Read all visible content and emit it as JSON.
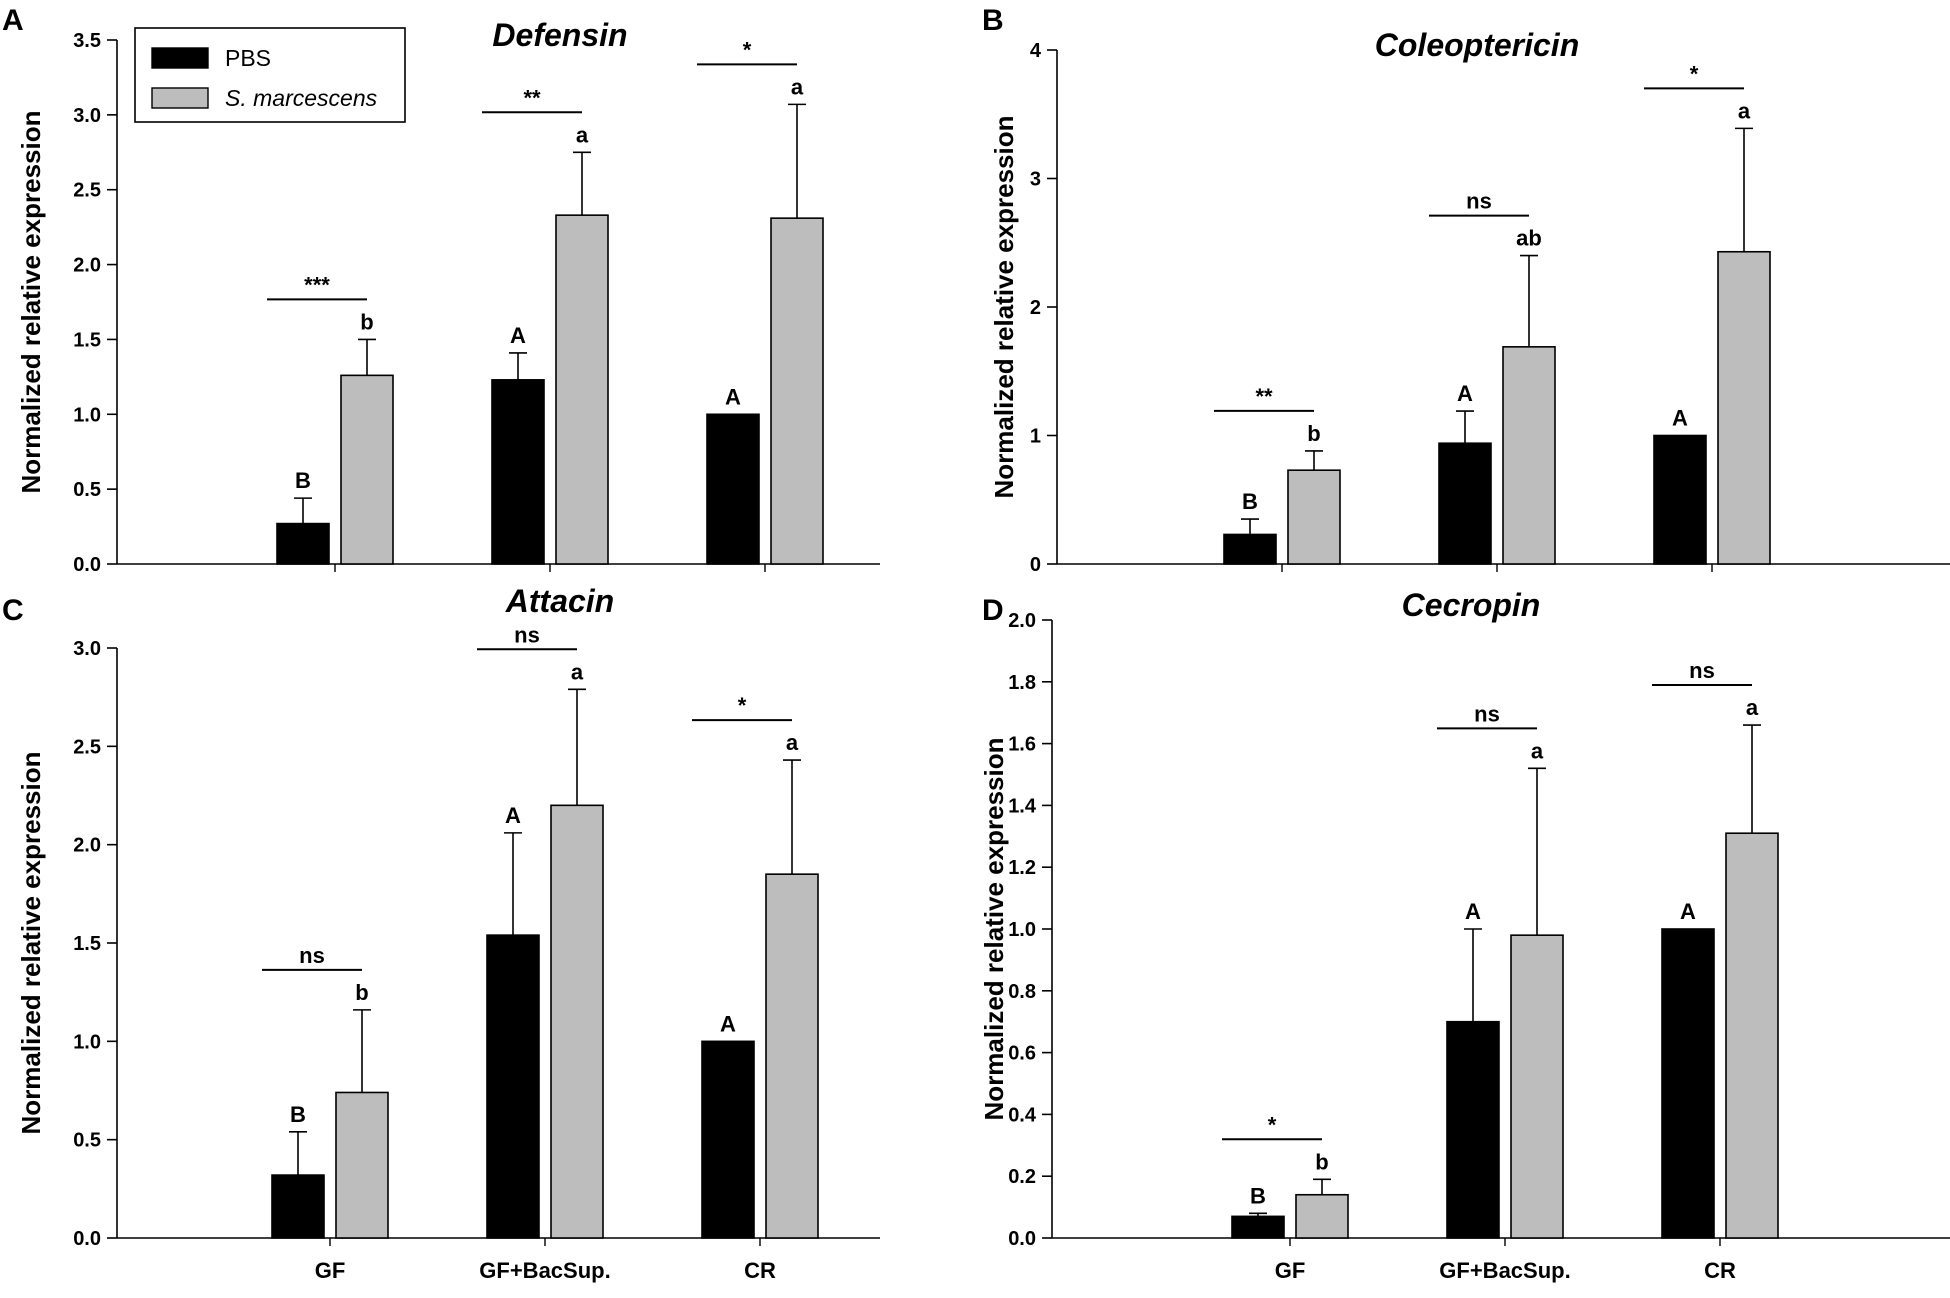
{
  "chart_data": [
    {
      "panel": "A",
      "type": "bar",
      "title": "Defensin",
      "xlabel": "",
      "ylabel": "Normalized relative expression",
      "ylim": [
        0,
        3.5
      ],
      "yticks": [
        "0.0",
        "0.5",
        "1.0",
        "1.5",
        "2.0",
        "2.5",
        "3.0",
        "3.5"
      ],
      "categories": [
        "GF",
        "GF+BacSup.",
        "CR"
      ],
      "show_category_labels": false,
      "series": [
        {
          "name": "PBS",
          "color": "#000000",
          "values": [
            0.27,
            1.23,
            1.0
          ],
          "errors": [
            0.17,
            0.18,
            0.0
          ],
          "letters": [
            "B",
            "A",
            "A"
          ]
        },
        {
          "name": "S. marcescens",
          "color": "#bdbdbd",
          "values": [
            1.26,
            2.33,
            2.31
          ],
          "errors": [
            0.24,
            0.42,
            0.76
          ],
          "letters": [
            "b",
            "a",
            "a"
          ]
        }
      ],
      "significance": [
        "***",
        "**",
        "*"
      ],
      "legend": {
        "placement": "top-left",
        "entries": [
          "PBS",
          "S. marcescens"
        ]
      }
    },
    {
      "panel": "B",
      "type": "bar",
      "title": "Coleoptericin",
      "xlabel": "",
      "ylabel": "Normalized relative expression",
      "ylim": [
        0,
        4
      ],
      "yticks": [
        "0",
        "1",
        "2",
        "3",
        "4"
      ],
      "categories": [
        "GF",
        "GF+BacSup.",
        "CR"
      ],
      "show_category_labels": false,
      "series": [
        {
          "name": "PBS",
          "color": "#000000",
          "values": [
            0.23,
            0.94,
            1.0
          ],
          "errors": [
            0.12,
            0.25,
            0.0
          ],
          "letters": [
            "B",
            "A",
            "A"
          ]
        },
        {
          "name": "S. marcescens",
          "color": "#bdbdbd",
          "values": [
            0.73,
            1.69,
            2.43
          ],
          "errors": [
            0.15,
            0.71,
            0.96
          ],
          "letters": [
            "b",
            "ab",
            "a"
          ]
        }
      ],
      "significance": [
        "**",
        "ns",
        "*"
      ]
    },
    {
      "panel": "C",
      "type": "bar",
      "title": "Attacin",
      "xlabel": "",
      "ylabel": "Normalized relative expression",
      "ylim": [
        0,
        3.0
      ],
      "yticks": [
        "0.0",
        "0.5",
        "1.0",
        "1.5",
        "2.0",
        "2.5",
        "3.0"
      ],
      "categories": [
        "GF",
        "GF+BacSup.",
        "CR"
      ],
      "show_category_labels": true,
      "series": [
        {
          "name": "PBS",
          "color": "#000000",
          "values": [
            0.32,
            1.54,
            1.0
          ],
          "errors": [
            0.22,
            0.52,
            0.0
          ],
          "letters": [
            "B",
            "A",
            "A"
          ]
        },
        {
          "name": "S. marcescens",
          "color": "#bdbdbd",
          "values": [
            0.74,
            2.2,
            1.85
          ],
          "errors": [
            0.42,
            0.59,
            0.58
          ],
          "letters": [
            "b",
            "a",
            "a"
          ]
        }
      ],
      "significance": [
        "ns",
        "ns",
        "*"
      ]
    },
    {
      "panel": "D",
      "type": "bar",
      "title": "Cecropin",
      "xlabel": "",
      "ylabel": "Normalized relative expression",
      "ylim": [
        0,
        2.0
      ],
      "yticks": [
        "0.0",
        "0.2",
        "0.4",
        "0.6",
        "0.8",
        "1.0",
        "1.2",
        "1.4",
        "1.6",
        "1.8",
        "2.0"
      ],
      "categories": [
        "GF",
        "GF+BacSup.",
        "CR"
      ],
      "show_category_labels": true,
      "series": [
        {
          "name": "PBS",
          "color": "#000000",
          "values": [
            0.07,
            0.7,
            1.0
          ],
          "errors": [
            0.01,
            0.3,
            0.0
          ],
          "letters": [
            "B",
            "A",
            "A"
          ]
        },
        {
          "name": "S. marcescens",
          "color": "#bdbdbd",
          "values": [
            0.14,
            0.98,
            1.31
          ],
          "errors": [
            0.05,
            0.54,
            0.35
          ],
          "letters": [
            "b",
            "a",
            "a"
          ]
        }
      ],
      "significance": [
        "*",
        "ns",
        "ns"
      ]
    }
  ]
}
